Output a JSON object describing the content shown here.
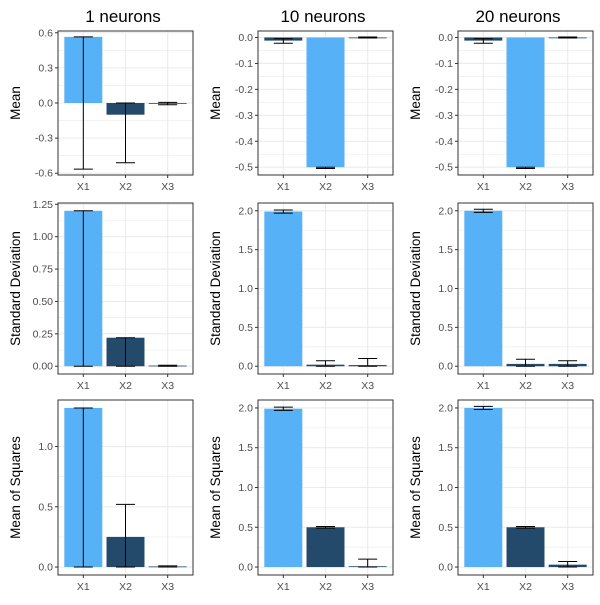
{
  "column_titles": [
    "1 neurons",
    "10 neurons",
    "20 neurons"
  ],
  "colors": {
    "light_bar": "#56b1f7",
    "dark_bar": "#234a6b",
    "grid": "#ebebeb",
    "border": "#333333",
    "tick_text": "#4d4d4d"
  },
  "chart_data": [
    {
      "type": "bar",
      "id": "r0c0",
      "title": "1 neurons",
      "ylabel": "Mean",
      "categories": [
        "X1",
        "X2",
        "X3"
      ],
      "values": [
        0.565,
        -0.1,
        -0.005
      ],
      "errors": [
        [
          -0.565,
          0.565
        ],
        [
          -0.51,
          0.0
        ],
        [
          -0.015,
          0.005
        ]
      ],
      "colors": [
        "#56b1f7",
        "#234a6b",
        "#234a6b"
      ],
      "ylim": [
        -0.615,
        0.615
      ],
      "yticks": [
        -0.6,
        -0.3,
        0.0,
        0.3,
        0.6
      ],
      "ytick_labels": [
        "-0.6",
        "-0.3",
        "0.0",
        "0.3",
        "0.6"
      ]
    },
    {
      "type": "bar",
      "id": "r0c1",
      "title": "10 neurons",
      "ylabel": "Mean",
      "categories": [
        "X1",
        "X2",
        "X3"
      ],
      "values": [
        -0.012,
        -0.5,
        0.0
      ],
      "errors": [
        [
          -0.022,
          -0.005
        ],
        [
          -0.505,
          -0.5
        ],
        [
          -0.002,
          0.002
        ]
      ],
      "colors": [
        "#234a6b",
        "#56b1f7",
        "#234a6b"
      ],
      "ylim": [
        -0.53,
        0.025
      ],
      "yticks": [
        0.0,
        -0.1,
        -0.2,
        -0.3,
        -0.4,
        -0.5
      ],
      "ytick_labels": [
        "0.0",
        "-0.1",
        "-0.2",
        "-0.3",
        "-0.4",
        "-0.5"
      ]
    },
    {
      "type": "bar",
      "id": "r0c2",
      "title": "20 neurons",
      "ylabel": "Mean",
      "categories": [
        "X1",
        "X2",
        "X3"
      ],
      "values": [
        -0.012,
        -0.5,
        0.0
      ],
      "errors": [
        [
          -0.022,
          -0.005
        ],
        [
          -0.505,
          -0.5
        ],
        [
          -0.002,
          0.002
        ]
      ],
      "colors": [
        "#234a6b",
        "#56b1f7",
        "#234a6b"
      ],
      "ylim": [
        -0.53,
        0.025
      ],
      "yticks": [
        0.0,
        -0.1,
        -0.2,
        -0.3,
        -0.4,
        -0.5
      ],
      "ytick_labels": [
        "0.0",
        "-0.1",
        "-0.2",
        "-0.3",
        "-0.4",
        "-0.5"
      ]
    },
    {
      "type": "bar",
      "id": "r1c0",
      "title": "",
      "ylabel": "Standard Deviation",
      "categories": [
        "X1",
        "X2",
        "X3"
      ],
      "values": [
        1.2,
        0.22,
        0.005
      ],
      "errors": [
        [
          0.0,
          1.2
        ],
        [
          0.0,
          0.22
        ],
        [
          0.0,
          0.008
        ]
      ],
      "colors": [
        "#56b1f7",
        "#234a6b",
        "#234a6b"
      ],
      "ylim": [
        -0.06,
        1.26
      ],
      "yticks": [
        0.0,
        0.25,
        0.5,
        0.75,
        1.0,
        1.25
      ],
      "ytick_labels": [
        "0.00",
        "0.25",
        "0.50",
        "0.75",
        "1.00",
        "1.25"
      ]
    },
    {
      "type": "bar",
      "id": "r1c1",
      "title": "",
      "ylabel": "Standard Deviation",
      "categories": [
        "X1",
        "X2",
        "X3"
      ],
      "values": [
        1.99,
        0.02,
        0.015
      ],
      "errors": [
        [
          1.97,
          2.01
        ],
        [
          0.0,
          0.07
        ],
        [
          0.0,
          0.1
        ]
      ],
      "colors": [
        "#56b1f7",
        "#234a6b",
        "#234a6b"
      ],
      "ylim": [
        -0.1,
        2.1
      ],
      "yticks": [
        0.0,
        0.5,
        1.0,
        1.5,
        2.0
      ],
      "ytick_labels": [
        "0.0",
        "0.5",
        "1.0",
        "1.5",
        "2.0"
      ]
    },
    {
      "type": "bar",
      "id": "r1c2",
      "title": "",
      "ylabel": "Standard Deviation",
      "categories": [
        "X1",
        "X2",
        "X3"
      ],
      "values": [
        2.0,
        0.03,
        0.03
      ],
      "errors": [
        [
          1.98,
          2.02
        ],
        [
          0.0,
          0.09
        ],
        [
          0.0,
          0.07
        ]
      ],
      "colors": [
        "#56b1f7",
        "#234a6b",
        "#234a6b"
      ],
      "ylim": [
        -0.1,
        2.1
      ],
      "yticks": [
        0.0,
        0.5,
        1.0,
        1.5,
        2.0
      ],
      "ytick_labels": [
        "0.0",
        "0.5",
        "1.0",
        "1.5",
        "2.0"
      ]
    },
    {
      "type": "bar",
      "id": "r2c0",
      "title": "",
      "ylabel": "Mean of Squares",
      "categories": [
        "X1",
        "X2",
        "X3"
      ],
      "values": [
        1.32,
        0.25,
        0.005
      ],
      "errors": [
        [
          0.0,
          1.32
        ],
        [
          0.0,
          0.52
        ],
        [
          0.0,
          0.01
        ]
      ],
      "colors": [
        "#56b1f7",
        "#234a6b",
        "#234a6b"
      ],
      "ylim": [
        -0.066,
        1.386
      ],
      "yticks": [
        0.0,
        0.5,
        1.0
      ],
      "ytick_labels": [
        "0.0",
        "0.5",
        "1.0"
      ]
    },
    {
      "type": "bar",
      "id": "r2c1",
      "title": "",
      "ylabel": "Mean of Squares",
      "categories": [
        "X1",
        "X2",
        "X3"
      ],
      "values": [
        1.99,
        0.5,
        0.01
      ],
      "errors": [
        [
          1.97,
          2.01
        ],
        [
          0.49,
          0.51
        ],
        [
          0.0,
          0.1
        ]
      ],
      "colors": [
        "#56b1f7",
        "#234a6b",
        "#234a6b"
      ],
      "ylim": [
        -0.1,
        2.1
      ],
      "yticks": [
        0.0,
        0.5,
        1.0,
        1.5,
        2.0
      ],
      "ytick_labels": [
        "0.0",
        "0.5",
        "1.0",
        "1.5",
        "2.0"
      ]
    },
    {
      "type": "bar",
      "id": "r2c2",
      "title": "",
      "ylabel": "Mean of Squares",
      "categories": [
        "X1",
        "X2",
        "X3"
      ],
      "values": [
        2.0,
        0.5,
        0.03
      ],
      "errors": [
        [
          1.98,
          2.02
        ],
        [
          0.49,
          0.51
        ],
        [
          0.0,
          0.07
        ]
      ],
      "colors": [
        "#56b1f7",
        "#234a6b",
        "#234a6b"
      ],
      "ylim": [
        -0.1,
        2.1
      ],
      "yticks": [
        0.0,
        0.5,
        1.0,
        1.5,
        2.0
      ],
      "ytick_labels": [
        "0.0",
        "0.5",
        "1.0",
        "1.5",
        "2.0"
      ]
    }
  ]
}
